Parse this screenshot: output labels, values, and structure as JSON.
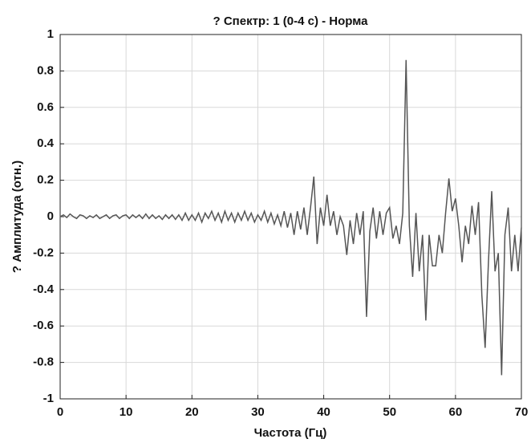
{
  "chart_data": {
    "type": "line",
    "title": "? Спектр: 1 (0-4 с) - Норма",
    "xlabel": "Частота (Гц)",
    "ylabel": "? Амплитуда (отн.)",
    "x": [
      0,
      0.5,
      1,
      1.5,
      2,
      2.5,
      3,
      3.5,
      4,
      4.5,
      5,
      5.5,
      6,
      6.5,
      7,
      7.5,
      8,
      8.5,
      9,
      9.5,
      10,
      10.5,
      11,
      11.5,
      12,
      12.5,
      13,
      13.5,
      14,
      14.5,
      15,
      15.5,
      16,
      16.5,
      17,
      17.5,
      18,
      18.5,
      19,
      19.5,
      20,
      20.5,
      21,
      21.5,
      22,
      22.5,
      23,
      23.5,
      24,
      24.5,
      25,
      25.5,
      26,
      26.5,
      27,
      27.5,
      28,
      28.5,
      29,
      29.5,
      30,
      30.5,
      31,
      31.5,
      32,
      32.5,
      33,
      33.5,
      34,
      34.5,
      35,
      35.5,
      36,
      36.5,
      37,
      37.5,
      38,
      38.5,
      39,
      39.5,
      40,
      40.5,
      41,
      41.5,
      42,
      42.5,
      43,
      43.5,
      44,
      44.5,
      45,
      45.5,
      46,
      46.5,
      47,
      47.5,
      48,
      48.5,
      49,
      49.5,
      50,
      50.5,
      51,
      51.5,
      52,
      52.5,
      53,
      53.5,
      54,
      54.5,
      55,
      55.5,
      56,
      56.5,
      57,
      57.5,
      58,
      58.5,
      59,
      59.5,
      60,
      60.5,
      61,
      61.5,
      62,
      62.5,
      63,
      63.5,
      64,
      64.5,
      65,
      65.5,
      66,
      66.5,
      67,
      67.5,
      68,
      68.5,
      69,
      69.5,
      70
    ],
    "series": [
      {
        "color": "#555555",
        "values": [
          0,
          0.01,
          -0.005,
          0.015,
          0,
          -0.01,
          0.01,
          0.005,
          -0.01,
          0.005,
          -0.005,
          0.01,
          -0.01,
          0,
          0.01,
          -0.01,
          0.005,
          0.01,
          -0.01,
          0.005,
          0.01,
          -0.01,
          0.01,
          -0.005,
          0.01,
          -0.01,
          0.015,
          -0.01,
          0.01,
          -0.01,
          0.005,
          -0.015,
          0.01,
          -0.01,
          0.01,
          -0.015,
          0.01,
          -0.02,
          0.02,
          -0.02,
          0.01,
          -0.02,
          0.02,
          -0.03,
          0.02,
          -0.01,
          0.03,
          -0.02,
          0.02,
          -0.03,
          0.03,
          -0.02,
          0.02,
          -0.03,
          0.02,
          -0.02,
          0.03,
          -0.02,
          0.02,
          -0.03,
          0.01,
          -0.02,
          0.03,
          -0.03,
          0.02,
          -0.04,
          0.01,
          -0.05,
          0.03,
          -0.06,
          0.02,
          -0.1,
          0.03,
          -0.07,
          0.05,
          -0.1,
          0.05,
          0.22,
          -0.15,
          0.05,
          -0.05,
          0.12,
          -0.05,
          0.03,
          -0.1,
          0,
          -0.05,
          -0.21,
          -0.02,
          -0.15,
          0.02,
          -0.1,
          0.03,
          -0.55,
          -0.08,
          0.05,
          -0.12,
          0.03,
          -0.1,
          0.02,
          0.05,
          -0.12,
          -0.05,
          -0.15,
          0.02,
          0.86,
          -0.05,
          -0.33,
          0.02,
          -0.3,
          -0.1,
          -0.57,
          -0.1,
          -0.27,
          -0.27,
          -0.1,
          -0.2,
          0.02,
          0.21,
          0.03,
          0.1,
          -0.05,
          -0.25,
          -0.05,
          -0.15,
          0.06,
          -0.1,
          0.08,
          -0.43,
          -0.72,
          -0.25,
          0.14,
          -0.3,
          -0.2,
          -0.87,
          -0.1,
          0.05,
          -0.3,
          -0.1,
          -0.3,
          -0.06
        ]
      }
    ],
    "xlim": [
      0,
      70
    ],
    "xticks": [
      0,
      10,
      20,
      30,
      40,
      50,
      60,
      70
    ],
    "ylim": [
      -1,
      1
    ],
    "yticks": [
      -1,
      -0.8,
      -0.6,
      -0.4,
      -0.2,
      0,
      0.2,
      0.4,
      0.6,
      0.8,
      1
    ],
    "grid": true
  }
}
